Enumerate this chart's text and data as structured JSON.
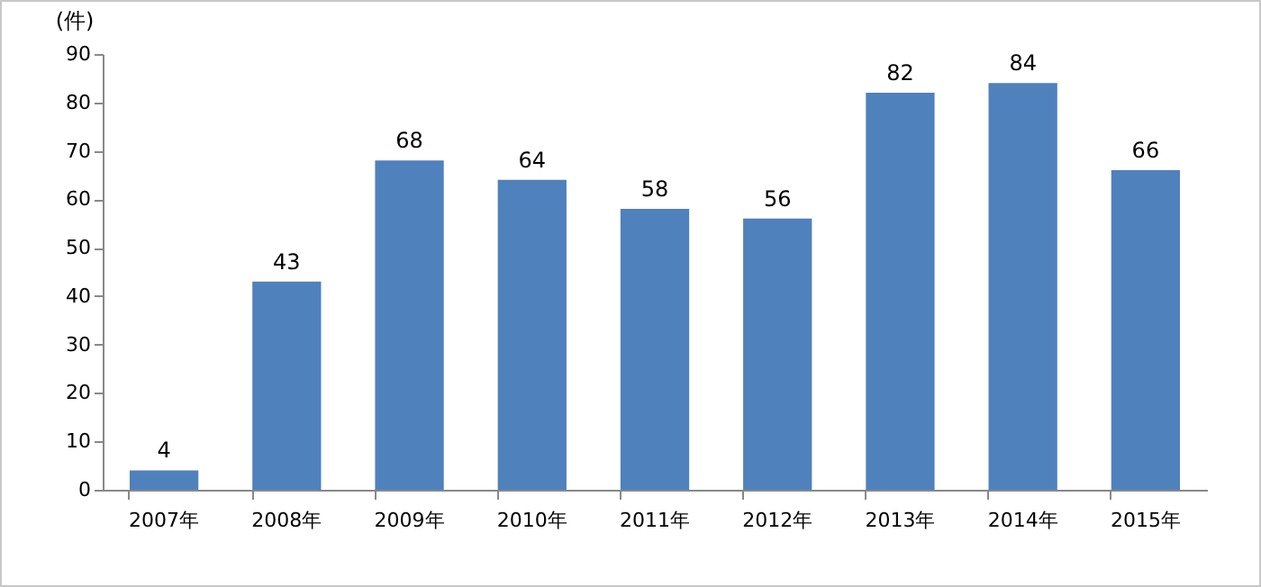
{
  "chart_data": {
    "type": "bar",
    "ylabel": "(件)",
    "categories": [
      "2007年",
      "2008年",
      "2009年",
      "2010年",
      "2011年",
      "2012年",
      "2013年",
      "2014年",
      "2015年"
    ],
    "values": [
      4,
      43,
      68,
      64,
      58,
      56,
      82,
      84,
      66
    ],
    "color": "#4f81bd",
    "ylim": [
      0,
      90
    ],
    "yticks": [
      0,
      10,
      20,
      30,
      40,
      50,
      60,
      70,
      80,
      90
    ],
    "data_labels": true,
    "grid": false
  }
}
